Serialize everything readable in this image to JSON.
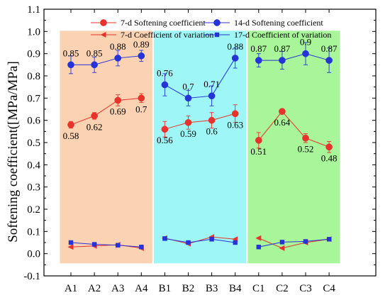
{
  "chart_data": {
    "type": "line",
    "ylabel": "Softening coefficient([MPa/MPa]",
    "xlabel": "",
    "ylim": [
      -0.1,
      1.1
    ],
    "yticks": [
      -0.1,
      0.0,
      0.1,
      0.2,
      0.3,
      0.4,
      0.5,
      0.6,
      0.7,
      0.8,
      0.9,
      1.0,
      1.1
    ],
    "categories": [
      "A1",
      "A2",
      "A3",
      "A4",
      "B1",
      "B2",
      "B3",
      "B4",
      "C1",
      "C2",
      "C3",
      "C4"
    ],
    "groups": [
      {
        "name": "A",
        "start": 0,
        "end": 3,
        "color": "#fbd3b2"
      },
      {
        "name": "B",
        "start": 4,
        "end": 7,
        "color": "#9ff6f6"
      },
      {
        "name": "C",
        "start": 8,
        "end": 11,
        "color": "#a8f59a"
      }
    ],
    "series": [
      {
        "name": "7-d Softening coefficient",
        "color": "#e8332c",
        "marker": "circle",
        "values": [
          0.58,
          0.62,
          0.69,
          0.7,
          0.56,
          0.59,
          0.6,
          0.63,
          0.51,
          0.64,
          0.52,
          0.48
        ],
        "errors": [
          0.015,
          0.015,
          0.025,
          0.02,
          0.035,
          0.03,
          0.035,
          0.04,
          0.035,
          0.01,
          0.02,
          0.025
        ],
        "labels": [
          "0.58",
          "0.62",
          "0.69",
          "0.7",
          "0.56",
          "0.59",
          "0.6",
          "0.63",
          "0.51",
          "0.64",
          "0.52",
          "0.48"
        ],
        "label_position": "below"
      },
      {
        "name": "14-d Softening coefficient",
        "color": "#2533d8",
        "marker": "circle",
        "values": [
          0.85,
          0.85,
          0.88,
          0.89,
          0.76,
          0.7,
          0.71,
          0.88,
          0.87,
          0.87,
          0.9,
          0.87
        ],
        "errors": [
          0.04,
          0.035,
          0.035,
          0.025,
          0.05,
          0.035,
          0.045,
          0.045,
          0.03,
          0.04,
          0.05,
          0.055
        ],
        "labels": [
          "0.85",
          "0.85",
          "0.88",
          "0.89",
          "0.76",
          "0.7",
          "0.71",
          "0.88",
          "0.87",
          "0.87",
          "0.9",
          "0.87"
        ],
        "label_position": "above"
      },
      {
        "name": "7-d Coefficient of variation",
        "color": "#e8332c",
        "marker": "triangle-left",
        "values": [
          0.03,
          0.035,
          0.04,
          0.025,
          0.07,
          0.045,
          0.075,
          0.065,
          0.07,
          0.025,
          0.05,
          0.065
        ]
      },
      {
        "name": "17-d Coefficient of variation",
        "color": "#2533d8",
        "marker": "square",
        "values": [
          0.05,
          0.042,
          0.038,
          0.03,
          0.068,
          0.05,
          0.065,
          0.05,
          0.03,
          0.052,
          0.055,
          0.065
        ]
      }
    ],
    "legend": [
      {
        "label": "7-d Softening coefficient",
        "series": 0
      },
      {
        "label": "14-d Softening coefficient",
        "series": 1
      },
      {
        "label": "7-d Coefficient of variation",
        "series": 2
      },
      {
        "label": "17-d Coefficient of variation",
        "series": 3
      }
    ],
    "legend_position": "top",
    "grid": false
  }
}
